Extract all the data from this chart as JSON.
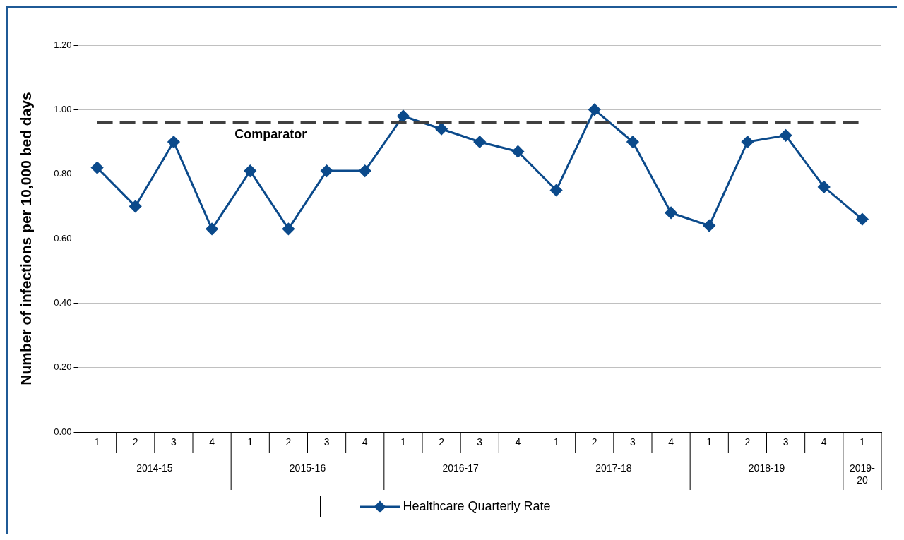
{
  "chart_data": {
    "type": "line",
    "ylabel": "Number of infections per 10,000 bed days",
    "categories": [
      "1",
      "2",
      "3",
      "4",
      "1",
      "2",
      "3",
      "4",
      "1",
      "2",
      "3",
      "4",
      "1",
      "2",
      "3",
      "4",
      "1",
      "2",
      "3",
      "4",
      "1"
    ],
    "series": [
      {
        "name": "Healthcare Quarterly Rate",
        "color": "#0b4a8b",
        "values": [
          0.82,
          0.7,
          0.9,
          0.63,
          0.81,
          0.63,
          0.81,
          0.81,
          0.98,
          0.94,
          0.9,
          0.87,
          0.75,
          1.0,
          0.9,
          0.68,
          0.64,
          0.9,
          0.92,
          0.76,
          0.66
        ]
      }
    ],
    "ylim": [
      0,
      1.2
    ],
    "yticks": [
      {
        "value": 0,
        "label": "0.00"
      },
      {
        "value": 0.2,
        "label": "0.20"
      },
      {
        "value": 0.4,
        "label": "0.40"
      },
      {
        "value": 0.6,
        "label": "0.60"
      },
      {
        "value": 0.8,
        "label": "0.80"
      },
      {
        "value": 1.0,
        "label": "1.00"
      },
      {
        "value": 1.2,
        "label": "1.20"
      }
    ],
    "ref_lines": [
      {
        "axis": "y",
        "value": 0.96,
        "label": "Comparator",
        "color": "#404040",
        "line_style": "dashed"
      }
    ],
    "annotations": [
      "2014-15",
      "2015-16",
      "2016-17",
      "2017-18",
      "2018-19",
      "2019-20"
    ],
    "grid": "y",
    "legend": "bottom",
    "marker": "diamond",
    "line_style": "solid"
  }
}
